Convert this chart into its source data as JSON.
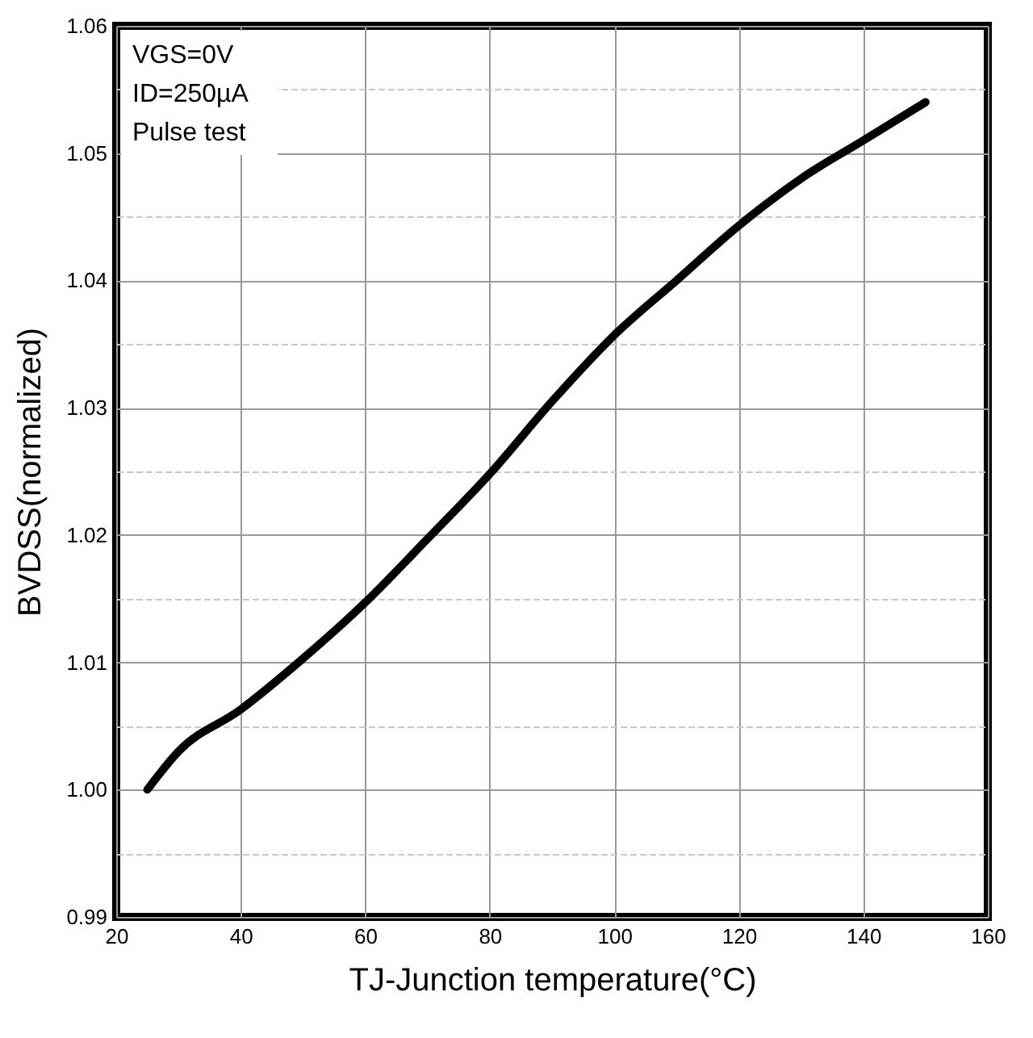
{
  "chart_data": {
    "type": "line",
    "xlabel": "TJ-Junction temperature(°C)",
    "ylabel": "BVDSS(normalized)",
    "annotations": [
      "VGS=0V",
      "ID=250µA",
      "Pulse test"
    ],
    "x": [
      25,
      30,
      40,
      50,
      60,
      70,
      80,
      90,
      100,
      110,
      120,
      130,
      140,
      150
    ],
    "series": [
      {
        "color": "#000000",
        "values": [
          1.0,
          1.003,
          1.0063,
          1.0103,
          1.0147,
          1.0197,
          1.0248,
          1.0305,
          1.0357,
          1.04,
          1.0443,
          1.048,
          1.051,
          1.054
        ]
      }
    ],
    "xlim": [
      20,
      160
    ],
    "xticks": [
      20,
      40,
      60,
      80,
      100,
      120,
      140,
      160
    ],
    "ylim": [
      0.99,
      1.06
    ],
    "yticks": [
      {
        "value": 0.99,
        "label": "0.99"
      },
      {
        "value": 0.995,
        "label": null
      },
      {
        "value": 1.0,
        "label": "1.00"
      },
      {
        "value": 1.005,
        "label": null
      },
      {
        "value": 1.01,
        "label": "1.01"
      },
      {
        "value": 1.015,
        "label": null
      },
      {
        "value": 1.02,
        "label": "1.02"
      },
      {
        "value": 1.025,
        "label": null
      },
      {
        "value": 1.03,
        "label": "1.03"
      },
      {
        "value": 1.035,
        "label": null
      },
      {
        "value": 1.04,
        "label": "1.04"
      },
      {
        "value": 1.045,
        "label": null
      },
      {
        "value": 1.05,
        "label": "1.05"
      },
      {
        "value": 1.055,
        "label": null
      },
      {
        "value": 1.06,
        "label": "1.06"
      }
    ],
    "grid": true,
    "line_style": "solid",
    "marker": "none"
  }
}
